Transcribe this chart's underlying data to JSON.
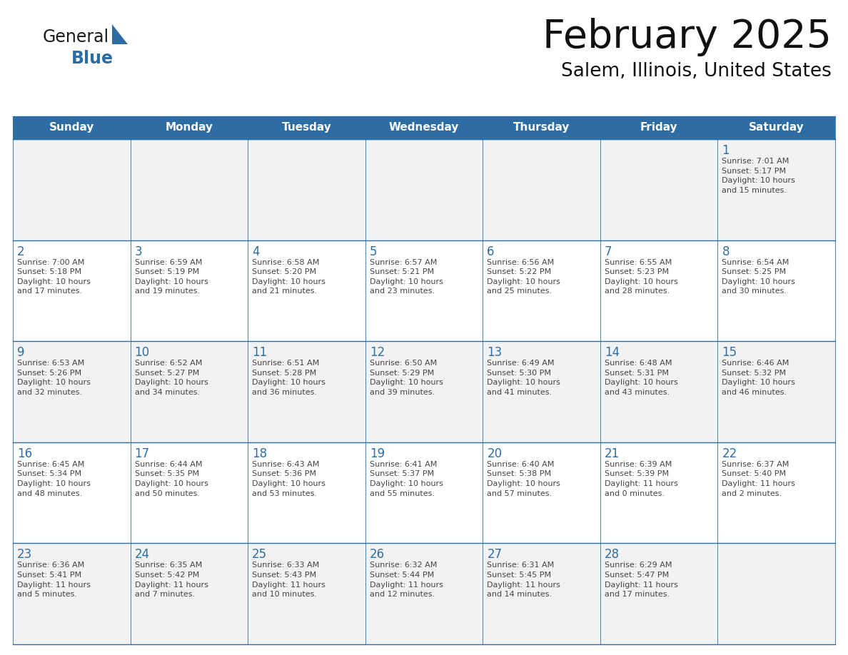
{
  "title": "February 2025",
  "subtitle": "Salem, Illinois, United States",
  "header_bg": "#2E6DA4",
  "header_text_color": "#FFFFFF",
  "cell_bg_odd": "#FFFFFF",
  "cell_bg_even": "#F2F2F2",
  "border_color": "#2E6DA4",
  "day_number_color": "#2E6DA4",
  "text_color": "#444444",
  "logo_text_color": "#1a1a1a",
  "logo_blue_color": "#2E6DA4",
  "triangle_color": "#2E6DA4",
  "days_of_week": [
    "Sunday",
    "Monday",
    "Tuesday",
    "Wednesday",
    "Thursday",
    "Friday",
    "Saturday"
  ],
  "calendar": [
    [
      {
        "day": "",
        "info": ""
      },
      {
        "day": "",
        "info": ""
      },
      {
        "day": "",
        "info": ""
      },
      {
        "day": "",
        "info": ""
      },
      {
        "day": "",
        "info": ""
      },
      {
        "day": "",
        "info": ""
      },
      {
        "day": "1",
        "info": "Sunrise: 7:01 AM\nSunset: 5:17 PM\nDaylight: 10 hours\nand 15 minutes."
      }
    ],
    [
      {
        "day": "2",
        "info": "Sunrise: 7:00 AM\nSunset: 5:18 PM\nDaylight: 10 hours\nand 17 minutes."
      },
      {
        "day": "3",
        "info": "Sunrise: 6:59 AM\nSunset: 5:19 PM\nDaylight: 10 hours\nand 19 minutes."
      },
      {
        "day": "4",
        "info": "Sunrise: 6:58 AM\nSunset: 5:20 PM\nDaylight: 10 hours\nand 21 minutes."
      },
      {
        "day": "5",
        "info": "Sunrise: 6:57 AM\nSunset: 5:21 PM\nDaylight: 10 hours\nand 23 minutes."
      },
      {
        "day": "6",
        "info": "Sunrise: 6:56 AM\nSunset: 5:22 PM\nDaylight: 10 hours\nand 25 minutes."
      },
      {
        "day": "7",
        "info": "Sunrise: 6:55 AM\nSunset: 5:23 PM\nDaylight: 10 hours\nand 28 minutes."
      },
      {
        "day": "8",
        "info": "Sunrise: 6:54 AM\nSunset: 5:25 PM\nDaylight: 10 hours\nand 30 minutes."
      }
    ],
    [
      {
        "day": "9",
        "info": "Sunrise: 6:53 AM\nSunset: 5:26 PM\nDaylight: 10 hours\nand 32 minutes."
      },
      {
        "day": "10",
        "info": "Sunrise: 6:52 AM\nSunset: 5:27 PM\nDaylight: 10 hours\nand 34 minutes."
      },
      {
        "day": "11",
        "info": "Sunrise: 6:51 AM\nSunset: 5:28 PM\nDaylight: 10 hours\nand 36 minutes."
      },
      {
        "day": "12",
        "info": "Sunrise: 6:50 AM\nSunset: 5:29 PM\nDaylight: 10 hours\nand 39 minutes."
      },
      {
        "day": "13",
        "info": "Sunrise: 6:49 AM\nSunset: 5:30 PM\nDaylight: 10 hours\nand 41 minutes."
      },
      {
        "day": "14",
        "info": "Sunrise: 6:48 AM\nSunset: 5:31 PM\nDaylight: 10 hours\nand 43 minutes."
      },
      {
        "day": "15",
        "info": "Sunrise: 6:46 AM\nSunset: 5:32 PM\nDaylight: 10 hours\nand 46 minutes."
      }
    ],
    [
      {
        "day": "16",
        "info": "Sunrise: 6:45 AM\nSunset: 5:34 PM\nDaylight: 10 hours\nand 48 minutes."
      },
      {
        "day": "17",
        "info": "Sunrise: 6:44 AM\nSunset: 5:35 PM\nDaylight: 10 hours\nand 50 minutes."
      },
      {
        "day": "18",
        "info": "Sunrise: 6:43 AM\nSunset: 5:36 PM\nDaylight: 10 hours\nand 53 minutes."
      },
      {
        "day": "19",
        "info": "Sunrise: 6:41 AM\nSunset: 5:37 PM\nDaylight: 10 hours\nand 55 minutes."
      },
      {
        "day": "20",
        "info": "Sunrise: 6:40 AM\nSunset: 5:38 PM\nDaylight: 10 hours\nand 57 minutes."
      },
      {
        "day": "21",
        "info": "Sunrise: 6:39 AM\nSunset: 5:39 PM\nDaylight: 11 hours\nand 0 minutes."
      },
      {
        "day": "22",
        "info": "Sunrise: 6:37 AM\nSunset: 5:40 PM\nDaylight: 11 hours\nand 2 minutes."
      }
    ],
    [
      {
        "day": "23",
        "info": "Sunrise: 6:36 AM\nSunset: 5:41 PM\nDaylight: 11 hours\nand 5 minutes."
      },
      {
        "day": "24",
        "info": "Sunrise: 6:35 AM\nSunset: 5:42 PM\nDaylight: 11 hours\nand 7 minutes."
      },
      {
        "day": "25",
        "info": "Sunrise: 6:33 AM\nSunset: 5:43 PM\nDaylight: 11 hours\nand 10 minutes."
      },
      {
        "day": "26",
        "info": "Sunrise: 6:32 AM\nSunset: 5:44 PM\nDaylight: 11 hours\nand 12 minutes."
      },
      {
        "day": "27",
        "info": "Sunrise: 6:31 AM\nSunset: 5:45 PM\nDaylight: 11 hours\nand 14 minutes."
      },
      {
        "day": "28",
        "info": "Sunrise: 6:29 AM\nSunset: 5:47 PM\nDaylight: 11 hours\nand 17 minutes."
      },
      {
        "day": "",
        "info": ""
      }
    ]
  ]
}
